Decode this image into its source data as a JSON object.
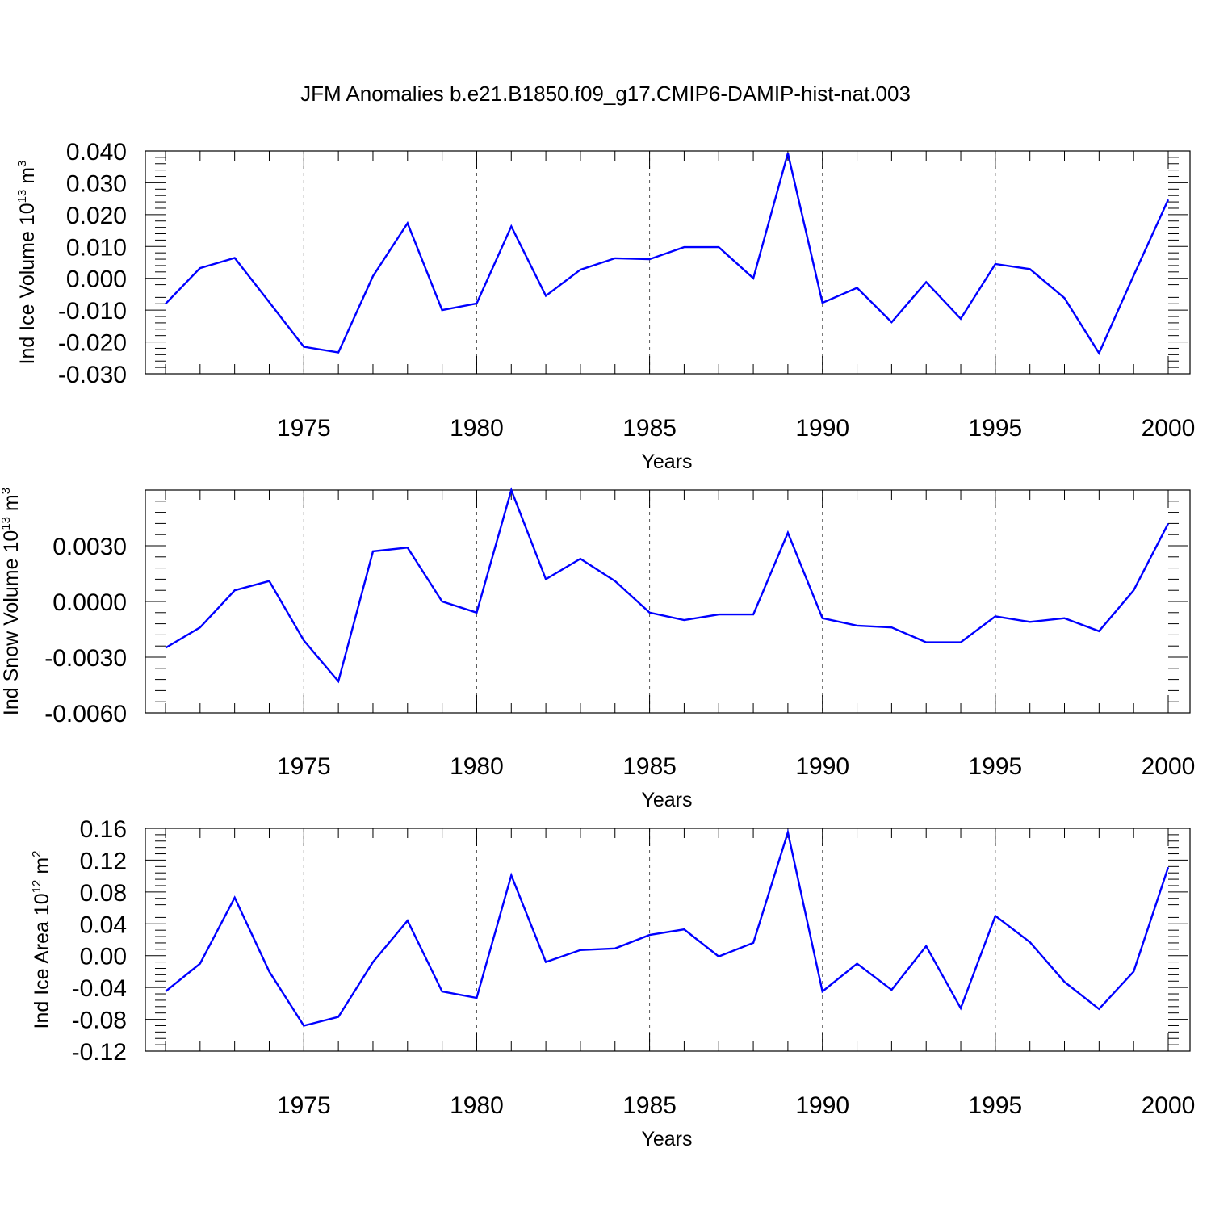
{
  "chart_data": {
    "type": "line",
    "title": "JFM Anomalies b.e21.B1850.f09_g17.CMIP6-DAMIP-hist-nat.003",
    "line_color": "#0000ff",
    "x": [
      1971,
      1972,
      1973,
      1974,
      1975,
      1976,
      1977,
      1978,
      1979,
      1980,
      1981,
      1982,
      1983,
      1984,
      1985,
      1986,
      1987,
      1988,
      1989,
      1990,
      1991,
      1992,
      1993,
      1994,
      1995,
      1996,
      1997,
      1998,
      1999,
      2000
    ],
    "xlim": [
      1971,
      2000
    ],
    "xticks": [
      1975,
      1980,
      1985,
      1990,
      1995,
      2000
    ],
    "xlabel": "Years",
    "vertical_dashed_gridlines": [
      1975,
      1980,
      1985,
      1990,
      1995
    ],
    "panels": [
      {
        "ylabel_main": "Ind Ice Volume 10",
        "ylabel_exp": "13",
        "ylabel_unit": " m",
        "ylabel_unit_exp": "3",
        "ylim": [
          -0.03,
          0.04
        ],
        "yticks": [
          -0.03,
          -0.02,
          -0.01,
          0.0,
          0.01,
          0.02,
          0.03,
          0.04
        ],
        "ytick_labels": [
          "-0.030",
          "-0.020",
          "-0.010",
          "0.000",
          "0.010",
          "0.020",
          "0.030",
          "0.040"
        ],
        "values": [
          -0.008,
          0.0032,
          0.0064,
          -0.0075,
          -0.0215,
          -0.0233,
          0.0007,
          0.0173,
          -0.01,
          -0.0079,
          0.0163,
          -0.0055,
          0.0027,
          0.0063,
          0.006,
          0.0098,
          0.0098,
          0.0,
          0.0393,
          -0.0077,
          -0.003,
          -0.0138,
          -0.0012,
          -0.0127,
          0.0045,
          0.0029,
          -0.0062,
          -0.0235,
          0.0009,
          0.0247
        ]
      },
      {
        "ylabel_main": "Ind Snow Volume 10",
        "ylabel_exp": "13",
        "ylabel_unit": " m",
        "ylabel_unit_exp": "3",
        "ylim": [
          -0.006,
          0.006
        ],
        "yticks": [
          -0.006,
          -0.003,
          0.0,
          0.003
        ],
        "ytick_labels": [
          "-0.0060",
          "-0.0030",
          "0.0000",
          "0.0030"
        ],
        "values": [
          -0.0025,
          -0.0014,
          0.0006,
          0.0011,
          -0.0021,
          -0.0043,
          0.0027,
          0.0029,
          0.0,
          -0.0006,
          0.006,
          0.0012,
          0.0023,
          0.0011,
          -0.0006,
          -0.001,
          -0.0007,
          -0.0007,
          0.0037,
          -0.0009,
          -0.0013,
          -0.0014,
          -0.0022,
          -0.0022,
          -0.0008,
          -0.0011,
          -0.0009,
          -0.0016,
          0.0006,
          0.0042
        ]
      },
      {
        "ylabel_main": "Ind Ice Area 10",
        "ylabel_exp": "12",
        "ylabel_unit": " m",
        "ylabel_unit_exp": "2",
        "ylim": [
          -0.12,
          0.16
        ],
        "yticks": [
          -0.12,
          -0.08,
          -0.04,
          0.0,
          0.04,
          0.08,
          0.12,
          0.16
        ],
        "ytick_labels": [
          "-0.12",
          "-0.08",
          "-0.04",
          "0.00",
          "0.04",
          "0.08",
          "0.12",
          "0.16"
        ],
        "values": [
          -0.045,
          -0.01,
          0.073,
          -0.02,
          -0.088,
          -0.077,
          -0.008,
          0.044,
          -0.045,
          -0.053,
          0.101,
          -0.008,
          0.007,
          0.009,
          0.026,
          0.033,
          -0.001,
          0.016,
          0.155,
          -0.045,
          -0.01,
          -0.043,
          0.012,
          -0.066,
          0.05,
          0.017,
          -0.033,
          -0.067,
          -0.02,
          0.111
        ]
      }
    ]
  }
}
